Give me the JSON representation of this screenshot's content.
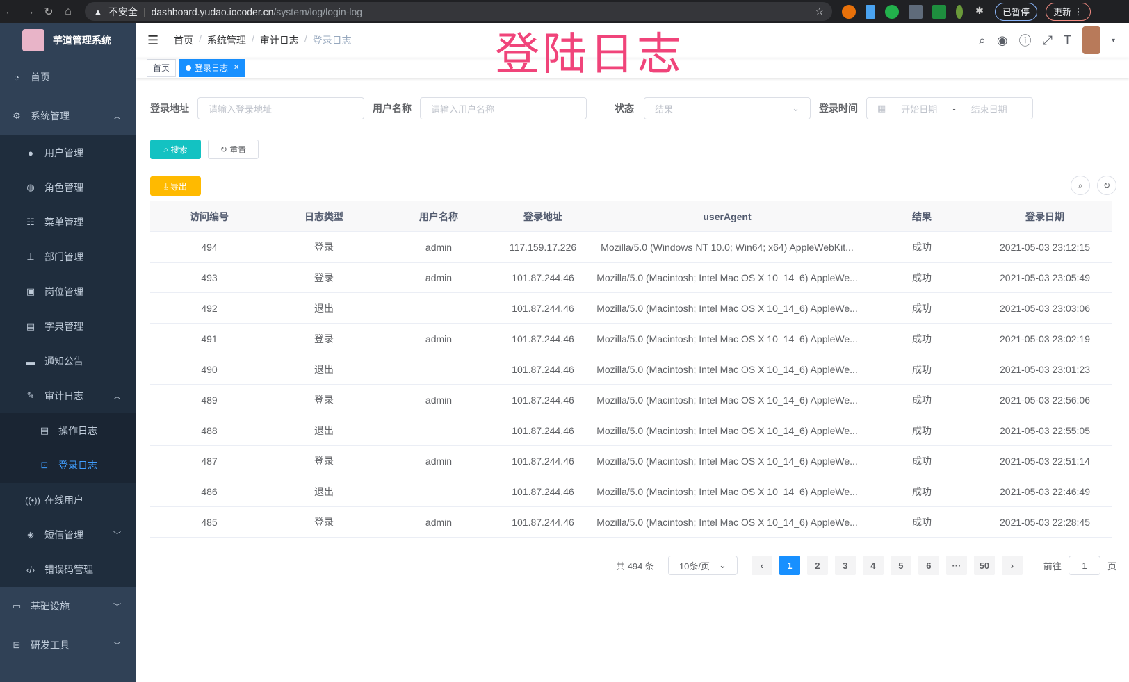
{
  "browser": {
    "security": "不安全",
    "url_host": "dashboard.yudao.iocoder.cn",
    "url_path": "/system/log/login-log",
    "paused": "已暂停",
    "update": "更新"
  },
  "sidebar": {
    "title": "芋道管理系统",
    "items": [
      {
        "label": "首页",
        "icon": "dashboard-icon"
      },
      {
        "label": "系统管理",
        "icon": "gear-icon",
        "children": [
          "用户管理",
          "角色管理",
          "菜单管理",
          "部门管理",
          "岗位管理",
          "字典管理",
          "通知公告"
        ],
        "audit": {
          "label": "审计日志",
          "children": [
            "操作日志",
            "登录日志"
          ]
        },
        "more": [
          "在线用户",
          "短信管理",
          "错误码管理"
        ]
      },
      {
        "label": "基础设施"
      },
      {
        "label": "研发工具"
      }
    ]
  },
  "breadcrumb": [
    "首页",
    "系统管理",
    "审计日志",
    "登录日志"
  ],
  "banner": "登陆日志",
  "tags": [
    "首页",
    "登录日志"
  ],
  "search": {
    "addr_label": "登录地址",
    "addr_ph": "请输入登录地址",
    "user_label": "用户名称",
    "user_ph": "请输入用户名称",
    "status_label": "状态",
    "status_ph": "结果",
    "time_label": "登录时间",
    "start_ph": "开始日期",
    "end_ph": "结束日期",
    "sep": "-",
    "search": "搜索",
    "reset": "重置",
    "export": "导出"
  },
  "table": {
    "headers": [
      "访问编号",
      "日志类型",
      "用户名称",
      "登录地址",
      "userAgent",
      "结果",
      "登录日期"
    ],
    "rows": [
      [
        "494",
        "登录",
        "admin",
        "117.159.17.226",
        "Mozilla/5.0 (Windows NT 10.0; Win64; x64) AppleWebKit...",
        "成功",
        "2021-05-03 23:12:15"
      ],
      [
        "493",
        "登录",
        "admin",
        "101.87.244.46",
        "Mozilla/5.0 (Macintosh; Intel Mac OS X 10_14_6) AppleWe...",
        "成功",
        "2021-05-03 23:05:49"
      ],
      [
        "492",
        "退出",
        "",
        "101.87.244.46",
        "Mozilla/5.0 (Macintosh; Intel Mac OS X 10_14_6) AppleWe...",
        "成功",
        "2021-05-03 23:03:06"
      ],
      [
        "491",
        "登录",
        "admin",
        "101.87.244.46",
        "Mozilla/5.0 (Macintosh; Intel Mac OS X 10_14_6) AppleWe...",
        "成功",
        "2021-05-03 23:02:19"
      ],
      [
        "490",
        "退出",
        "",
        "101.87.244.46",
        "Mozilla/5.0 (Macintosh; Intel Mac OS X 10_14_6) AppleWe...",
        "成功",
        "2021-05-03 23:01:23"
      ],
      [
        "489",
        "登录",
        "admin",
        "101.87.244.46",
        "Mozilla/5.0 (Macintosh; Intel Mac OS X 10_14_6) AppleWe...",
        "成功",
        "2021-05-03 22:56:06"
      ],
      [
        "488",
        "退出",
        "",
        "101.87.244.46",
        "Mozilla/5.0 (Macintosh; Intel Mac OS X 10_14_6) AppleWe...",
        "成功",
        "2021-05-03 22:55:05"
      ],
      [
        "487",
        "登录",
        "admin",
        "101.87.244.46",
        "Mozilla/5.0 (Macintosh; Intel Mac OS X 10_14_6) AppleWe...",
        "成功",
        "2021-05-03 22:51:14"
      ],
      [
        "486",
        "退出",
        "",
        "101.87.244.46",
        "Mozilla/5.0 (Macintosh; Intel Mac OS X 10_14_6) AppleWe...",
        "成功",
        "2021-05-03 22:46:49"
      ],
      [
        "485",
        "登录",
        "admin",
        "101.87.244.46",
        "Mozilla/5.0 (Macintosh; Intel Mac OS X 10_14_6) AppleWe...",
        "成功",
        "2021-05-03 22:28:45"
      ]
    ]
  },
  "pagination": {
    "total": "共 494 条",
    "size": "10条/页",
    "pages": [
      "1",
      "2",
      "3",
      "4",
      "5",
      "6",
      "···",
      "50"
    ],
    "current": "1",
    "goto": "前往",
    "goto_value": "1",
    "page_unit": "页"
  },
  "colors": {
    "sidebar": "#304156",
    "primary": "#1890ff",
    "search_btn": "#13c2c2",
    "export_btn": "#ffba00",
    "banner": "#f0447a"
  }
}
